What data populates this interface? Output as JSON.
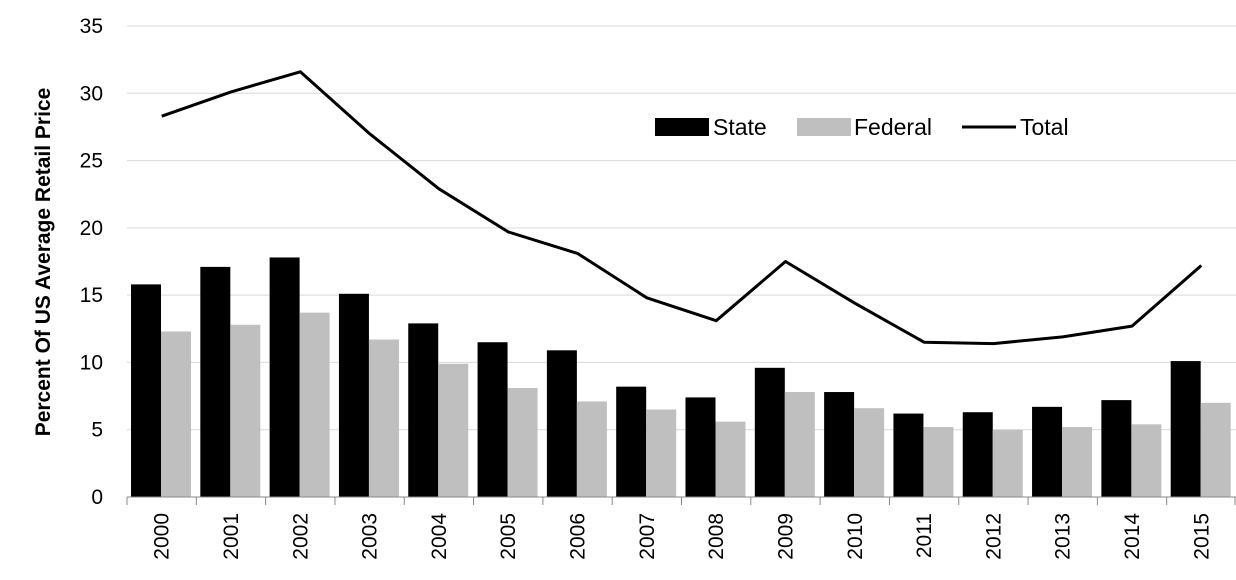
{
  "chart_data": {
    "type": "bar",
    "title": "",
    "xlabel": "",
    "ylabel": "Percent Of US Average Retail Price",
    "ylim": [
      0,
      35
    ],
    "yticks": [
      0,
      5,
      10,
      15,
      20,
      25,
      30,
      35
    ],
    "grid": true,
    "legend_position": "top-right",
    "categories": [
      "2000",
      "2001",
      "2002",
      "2003",
      "2004",
      "2005",
      "2006",
      "2007",
      "2008",
      "2009",
      "2010",
      "2011",
      "2012",
      "2013",
      "2014",
      "2015"
    ],
    "series": [
      {
        "name": "State",
        "type": "bar",
        "color": "#000000",
        "values": [
          15.8,
          17.1,
          17.8,
          15.1,
          12.9,
          11.5,
          10.9,
          8.2,
          7.4,
          9.6,
          7.8,
          6.2,
          6.3,
          6.7,
          7.2,
          10.1
        ]
      },
      {
        "name": "Federal",
        "type": "bar",
        "color": "#bfbfbf",
        "values": [
          12.3,
          12.8,
          13.7,
          11.7,
          9.9,
          8.1,
          7.1,
          6.5,
          5.6,
          7.8,
          6.6,
          5.2,
          5.0,
          5.2,
          5.4,
          7.0
        ]
      },
      {
        "name": "Total",
        "type": "line",
        "color": "#000000",
        "values": [
          28.3,
          30.1,
          31.6,
          27.0,
          22.9,
          19.7,
          18.1,
          14.8,
          13.1,
          17.5,
          14.4,
          11.5,
          11.4,
          11.9,
          12.7,
          17.2
        ]
      }
    ]
  }
}
